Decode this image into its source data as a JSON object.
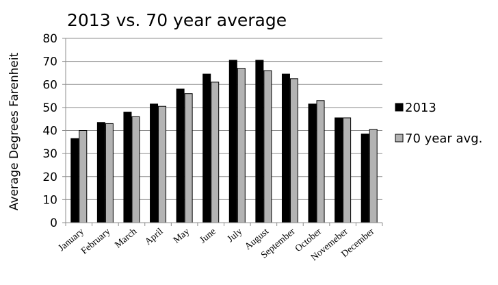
{
  "chart_data": {
    "type": "bar",
    "title": "2013 vs. 70 year average",
    "ylabel": "Average Degrees Farenheit",
    "xlabel": "",
    "ylim": [
      0,
      80
    ],
    "yticks": [
      0,
      10,
      20,
      30,
      40,
      50,
      60,
      70,
      80
    ],
    "grid": true,
    "legend": "right",
    "categories": [
      "January",
      "February",
      "March",
      "April",
      "May",
      "June",
      "July",
      "August",
      "September",
      "October",
      "Novemeber",
      "December"
    ],
    "series": [
      {
        "name": "2013",
        "color": "#000000",
        "values": [
          36.5,
          43.5,
          48,
          51.5,
          58,
          64.5,
          70.5,
          70.5,
          64.5,
          51.5,
          45.5,
          38.5
        ]
      },
      {
        "name": "70 year avg.",
        "color": "#b3b3b3",
        "values": [
          40,
          43,
          46,
          50.5,
          56,
          61,
          67,
          66,
          62.5,
          53,
          45.5,
          40.5
        ]
      }
    ]
  }
}
